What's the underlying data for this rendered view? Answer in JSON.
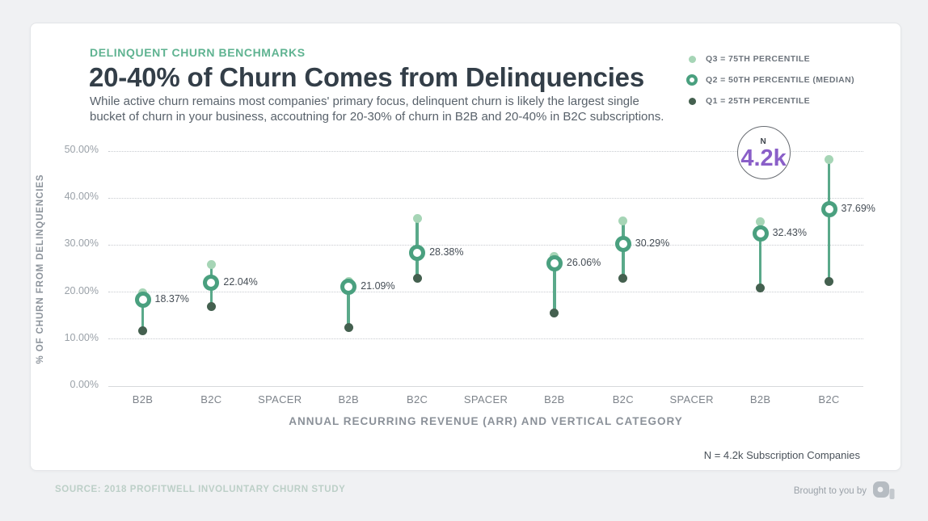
{
  "header": {
    "eyebrow": "DELINQUENT CHURN BENCHMARKS",
    "title": "20-40% of Churn Comes from Delinquencies",
    "subtitle_lines": [
      "While active churn remains most companies' primary focus, delinquent churn is likely the largest single",
      "bucket of churn in your business, accoutning for 20-30% of churn in B2B and 20-40% in B2C subscriptions."
    ]
  },
  "legend": {
    "items": [
      {
        "label": "Q3 = 75TH PERCENTILE",
        "marker": "light-dot"
      },
      {
        "label": "Q2 = 50TH PERCENTILE (MEDIAN)",
        "marker": "ring"
      },
      {
        "label": "Q1 = 25TH PERCENTILE",
        "marker": "dark-dot"
      }
    ]
  },
  "note": "N = 4.2k Subscription Companies",
  "footer": {
    "source": "SOURCE: 2018 PROFITWELL INVOLUNTARY CHURN STUDY",
    "brought_by": "Brought to you by",
    "logo": "profitwell-logo"
  },
  "colors": {
    "q3_light": "#a6d5b6",
    "q2_ring": "#4aa07f",
    "q1_dark": "#44604f",
    "stem": "#5aa98a",
    "accent_green": "#5fb391",
    "accent_purple": "#8a5fc8",
    "grid_dotted": "#c8cbd0",
    "grid_solid": "#d7d9dc",
    "axis_text": "#9aa1a8",
    "x_tick_text": "#7d838a",
    "value_label_text": "#454d55",
    "annotation_border": "#686c72"
  },
  "chart_data": {
    "type": "scatter",
    "subtype": "percentile-range-lollipop",
    "title": "20-40% of Churn Comes from Delinquencies",
    "xlabel": "ANNUAL RECURRING REVENUE (ARR) AND VERTICAL CATEGORY",
    "ylabel": "% OF CHURN FROM DELINQUENCIES",
    "ylim": [
      0,
      50
    ],
    "yticks": [
      50,
      40,
      30,
      20,
      10,
      0
    ],
    "ytick_labels": [
      "50.00%",
      "40.00%",
      "30.00%",
      "20.00%",
      "10.00%",
      "0.00%"
    ],
    "grid": "horizontal-dotted, solid baseline",
    "legend_position": "top-right",
    "categories": [
      "B2B",
      "B2C",
      "SPACER",
      "B2B",
      "B2C",
      "SPACER",
      "B2B",
      "B2C",
      "SPACER",
      "B2B",
      "B2C"
    ],
    "series": [
      {
        "name": "Q3 = 75th Percentile",
        "values": [
          19.9,
          25.9,
          null,
          22.3,
          35.7,
          null,
          27.5,
          35.2,
          null,
          34.9,
          48.2
        ]
      },
      {
        "name": "Q2 = 50th Percentile (Median)",
        "values": [
          18.37,
          22.04,
          null,
          21.09,
          28.38,
          null,
          26.06,
          30.29,
          null,
          32.43,
          37.69
        ],
        "labels": [
          "18.37%",
          "22.04%",
          null,
          "21.09%",
          "28.38%",
          null,
          "26.06%",
          "30.29%",
          null,
          "32.43%",
          "37.69%"
        ]
      },
      {
        "name": "Q1 = 25th Percentile",
        "values": [
          11.7,
          17.0,
          null,
          12.5,
          23.0,
          null,
          15.6,
          22.9,
          null,
          20.8,
          22.3
        ]
      }
    ],
    "annotation": {
      "text_top": "N",
      "text_value": "4.2k",
      "anchor_category_index": 9
    }
  }
}
